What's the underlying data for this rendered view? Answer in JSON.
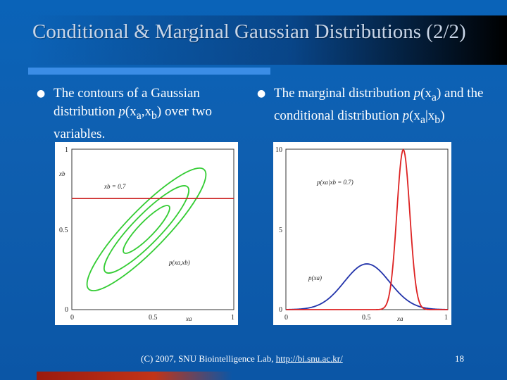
{
  "slide": {
    "title": "Conditional & Marginal Gaussian Distributions (2/2)",
    "bullet_left": "The contours of a Gaussian distribution p(xa,xb) over two variables.",
    "bullet_right": "The marginal distribution p(xa) and the conditional distribution p(xa|xb)",
    "footer_text": "(C) 2007, SNU Biointelligence Lab, ",
    "footer_link": "http://bi.snu.ac.kr/",
    "page_number": "18"
  },
  "figure_left": {
    "y_ticks": [
      "1",
      "0.5",
      "0"
    ],
    "x_ticks": [
      "0",
      "0.5",
      "1"
    ],
    "y_axis_label": "xb",
    "x_axis_label": "xa",
    "line_label": "xb = 0.7",
    "contour_label": "p(xa,xb)",
    "colors": {
      "contour": "#33cc33",
      "line": "#cc2222"
    }
  },
  "figure_right": {
    "y_ticks": [
      "10",
      "5",
      "0"
    ],
    "x_ticks": [
      "0",
      "0.5",
      "1"
    ],
    "x_axis_label": "xa",
    "conditional_label": "p(xa|xb = 0.7)",
    "marginal_label": "p(xa)",
    "colors": {
      "conditional": "#dd2222",
      "marginal": "#2233aa"
    }
  }
}
